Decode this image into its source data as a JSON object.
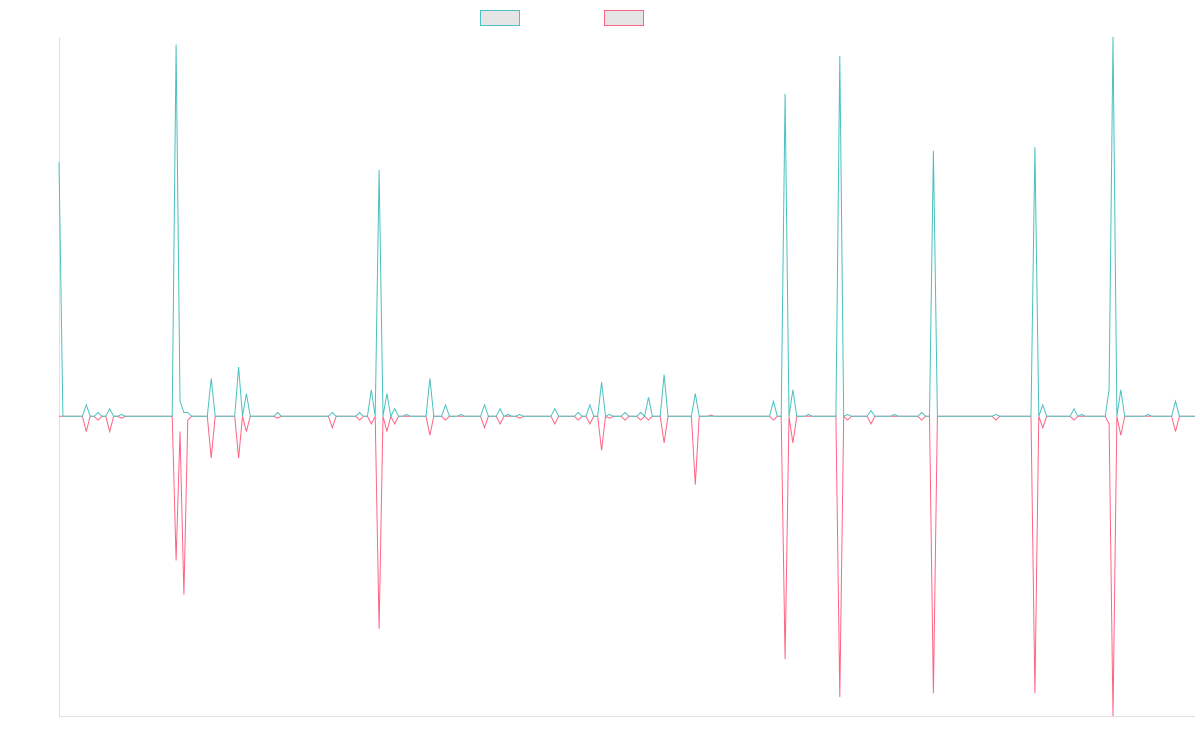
{
  "chart_data": {
    "type": "line",
    "title": "",
    "xlabel": "",
    "ylabel": "",
    "xlim": [
      0,
      291
    ],
    "ylim": [
      -79,
      100
    ],
    "grid": false,
    "legend_position": "top-center",
    "series": [
      {
        "name": "",
        "color": "#4bc0c0",
        "points": [
          [
            0,
            67
          ],
          [
            1,
            0
          ],
          [
            7,
            3
          ],
          [
            10,
            1
          ],
          [
            13,
            2
          ],
          [
            16,
            0.5
          ],
          [
            30,
            98
          ],
          [
            31,
            4
          ],
          [
            32,
            1
          ],
          [
            33,
            1
          ],
          [
            39,
            10
          ],
          [
            46,
            13
          ],
          [
            48,
            6
          ],
          [
            56,
            1
          ],
          [
            70,
            1
          ],
          [
            77,
            1
          ],
          [
            80,
            7
          ],
          [
            82,
            65
          ],
          [
            84,
            6
          ],
          [
            86,
            2
          ],
          [
            89,
            0.5
          ],
          [
            95,
            10
          ],
          [
            99,
            3
          ],
          [
            103,
            0.5
          ],
          [
            109,
            3
          ],
          [
            113,
            2
          ],
          [
            115,
            0.5
          ],
          [
            118,
            0.5
          ],
          [
            127,
            2
          ],
          [
            133,
            1
          ],
          [
            136,
            3
          ],
          [
            139,
            9
          ],
          [
            141,
            0.5
          ],
          [
            145,
            1
          ],
          [
            149,
            1
          ],
          [
            151,
            5
          ],
          [
            155,
            11
          ],
          [
            163,
            6
          ],
          [
            183,
            4
          ],
          [
            186,
            85
          ],
          [
            188,
            7
          ],
          [
            192,
            0.5
          ],
          [
            200,
            95
          ],
          [
            202,
            0.5
          ],
          [
            208,
            1.5
          ],
          [
            214,
            0.5
          ],
          [
            221,
            1
          ],
          [
            224,
            70
          ],
          [
            240,
            0.5
          ],
          [
            250,
            71
          ],
          [
            252,
            3
          ],
          [
            260,
            2
          ],
          [
            262,
            0.5
          ],
          [
            269,
            7
          ],
          [
            270,
            100
          ],
          [
            272,
            7
          ],
          [
            279,
            0.5
          ],
          [
            286,
            4
          ]
        ]
      },
      {
        "name": "",
        "color": "#ff6384",
        "points": [
          [
            7,
            -4
          ],
          [
            10,
            -1
          ],
          [
            13,
            -4
          ],
          [
            16,
            -0.5
          ],
          [
            30,
            -38
          ],
          [
            31,
            -4
          ],
          [
            32,
            -47
          ],
          [
            33,
            -1
          ],
          [
            39,
            -11
          ],
          [
            46,
            -11
          ],
          [
            48,
            -4
          ],
          [
            56,
            -0.5
          ],
          [
            70,
            -3
          ],
          [
            77,
            -1
          ],
          [
            80,
            -2
          ],
          [
            82,
            -56
          ],
          [
            84,
            -4
          ],
          [
            86,
            -2
          ],
          [
            95,
            -5
          ],
          [
            99,
            -1
          ],
          [
            109,
            -3
          ],
          [
            113,
            -2
          ],
          [
            118,
            -0.5
          ],
          [
            127,
            -2
          ],
          [
            133,
            -1
          ],
          [
            136,
            -2
          ],
          [
            139,
            -9
          ],
          [
            141,
            -0.5
          ],
          [
            145,
            -1
          ],
          [
            149,
            -1
          ],
          [
            151,
            -1
          ],
          [
            155,
            -7
          ],
          [
            163,
            -18
          ],
          [
            167,
            0.3
          ],
          [
            183,
            -1
          ],
          [
            186,
            -64
          ],
          [
            188,
            -7
          ],
          [
            202,
            -1
          ],
          [
            200,
            -74
          ],
          [
            208,
            -2
          ],
          [
            221,
            -1
          ],
          [
            224,
            -73
          ],
          [
            240,
            -1
          ],
          [
            250,
            -73
          ],
          [
            252,
            -3
          ],
          [
            260,
            -1
          ],
          [
            269,
            -2
          ],
          [
            270,
            -79
          ],
          [
            272,
            -5
          ],
          [
            286,
            -4
          ]
        ]
      }
    ]
  }
}
